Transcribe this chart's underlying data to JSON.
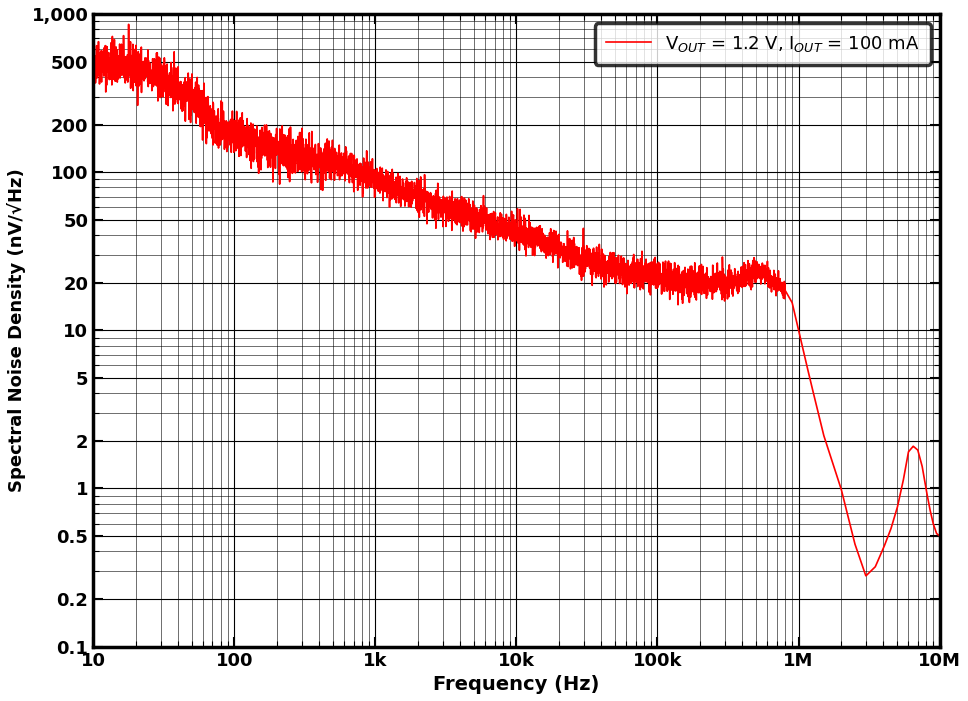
{
  "xlabel": "Frequency (Hz)",
  "ylabel": "Spectral Noise Density (nV/√Hz)",
  "legend_label": "V$_{OUT}$ = 1.2 V, I$_{OUT}$ = 100 mA",
  "line_color": "#FF0000",
  "line_width": 1.2,
  "xlim": [
    10,
    10000000
  ],
  "ylim": [
    0.1,
    1000
  ],
  "background_color": "#FFFFFF",
  "grid_color": "#000000",
  "x_major_ticks": [
    10,
    100,
    1000,
    10000,
    100000,
    1000000,
    10000000
  ],
  "x_major_labels": [
    "10",
    "100",
    "1k",
    "10k",
    "100k",
    "1M",
    "10M"
  ],
  "y_major_ticks": [
    0.1,
    0.2,
    0.5,
    1,
    2,
    5,
    10,
    20,
    50,
    100,
    200,
    500,
    1000
  ],
  "y_major_labels": [
    "0.1",
    "0.2",
    "0.5",
    "1",
    "2",
    "5",
    "10",
    "20",
    "50",
    "100",
    "200",
    "500",
    "1,000"
  ],
  "noise_curve_points": [
    [
      10,
      500
    ],
    [
      15,
      480
    ],
    [
      20,
      450
    ],
    [
      25,
      420
    ],
    [
      30,
      390
    ],
    [
      40,
      340
    ],
    [
      50,
      290
    ],
    [
      60,
      245
    ],
    [
      70,
      210
    ],
    [
      80,
      185
    ],
    [
      90,
      175
    ],
    [
      100,
      165
    ],
    [
      120,
      155
    ],
    [
      150,
      145
    ],
    [
      200,
      135
    ],
    [
      250,
      130
    ],
    [
      300,
      125
    ],
    [
      400,
      118
    ],
    [
      500,
      112
    ],
    [
      700,
      105
    ],
    [
      1000,
      88
    ],
    [
      1500,
      78
    ],
    [
      2000,
      70
    ],
    [
      3000,
      60
    ],
    [
      5000,
      52
    ],
    [
      7000,
      47
    ],
    [
      10000,
      42
    ],
    [
      15000,
      37
    ],
    [
      20000,
      33
    ],
    [
      30000,
      28
    ],
    [
      50000,
      25
    ],
    [
      70000,
      23
    ],
    [
      100000,
      22
    ],
    [
      150000,
      20
    ],
    [
      200000,
      20
    ],
    [
      300000,
      20
    ],
    [
      400000,
      22
    ],
    [
      500000,
      24
    ],
    [
      600000,
      22
    ],
    [
      700000,
      20
    ],
    [
      800000,
      18
    ],
    [
      900000,
      15
    ],
    [
      1000000,
      10
    ],
    [
      1200000,
      5
    ],
    [
      1500000,
      2.2
    ],
    [
      2000000,
      1.0
    ],
    [
      2500000,
      0.45
    ],
    [
      3000000,
      0.28
    ],
    [
      3500000,
      0.32
    ],
    [
      4000000,
      0.42
    ],
    [
      4500000,
      0.55
    ],
    [
      5000000,
      0.75
    ],
    [
      5500000,
      1.1
    ],
    [
      6000000,
      1.7
    ],
    [
      6500000,
      1.85
    ],
    [
      7000000,
      1.75
    ],
    [
      7500000,
      1.4
    ],
    [
      8000000,
      1.0
    ],
    [
      8500000,
      0.75
    ],
    [
      9000000,
      0.6
    ],
    [
      9500000,
      0.52
    ],
    [
      10000000,
      0.5
    ]
  ],
  "noise_seed": 42,
  "noise_amplitude_low": 0.07,
  "noise_amplitude_mid": 0.05,
  "noise_amplitude_high": 0.03
}
